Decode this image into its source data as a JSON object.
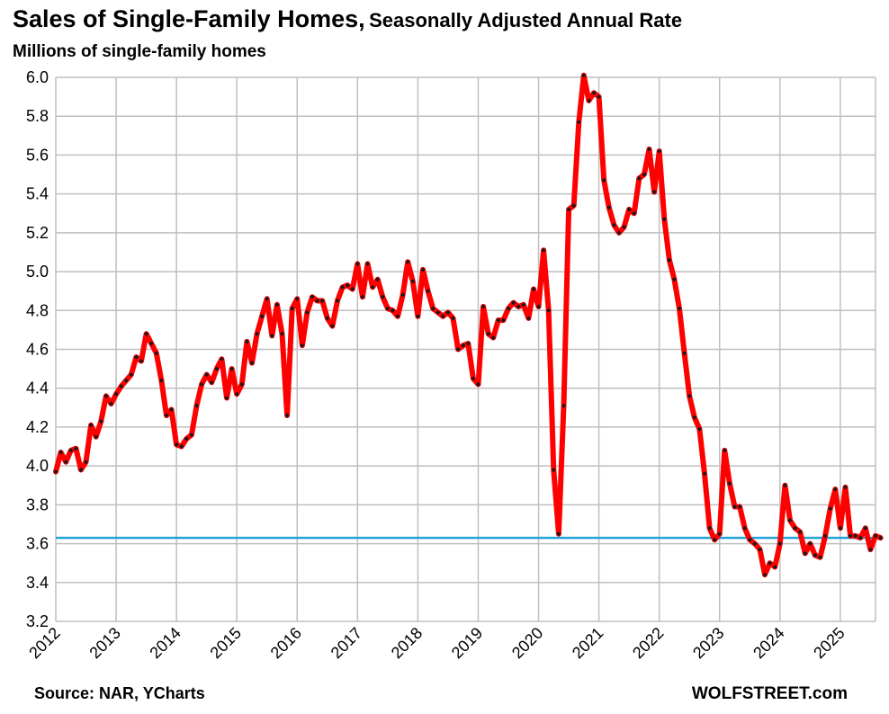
{
  "title": "Sales of Single-Family Homes,",
  "subtitle": "Seasonally Adjusted Annual Rate",
  "ylabel": "Millions of single-family homes",
  "source": "Source: NAR, YCharts",
  "brand": "WOLFSTREET.com",
  "colors": {
    "line": "#ff0000",
    "marker": "#1a1a1a",
    "reference": "#1fa3d8",
    "grid": "#bfbfbf"
  },
  "chart_data": {
    "type": "line",
    "xlabel": "",
    "ylabel": "Millions of single-family homes",
    "x_start": "2012-01",
    "frequency": "monthly",
    "xlim": [
      "2012-01",
      "2025-08"
    ],
    "ylim": [
      3.2,
      6.0
    ],
    "yticks": [
      "3.2",
      "3.4",
      "3.6",
      "3.8",
      "4.0",
      "4.2",
      "4.4",
      "4.6",
      "4.8",
      "5.0",
      "5.2",
      "5.4",
      "5.6",
      "5.8",
      "6.0"
    ],
    "xticks": [
      "2012",
      "2013",
      "2014",
      "2015",
      "2016",
      "2017",
      "2018",
      "2019",
      "2020",
      "2021",
      "2022",
      "2023",
      "2024",
      "2025"
    ],
    "grid": true,
    "reference_line": {
      "y": 3.63
    },
    "series": [
      {
        "values": [
          3.97,
          4.07,
          4.02,
          4.08,
          4.09,
          3.98,
          4.02,
          4.21,
          4.15,
          4.23,
          4.36,
          4.32,
          4.37,
          4.41,
          4.44,
          4.47,
          4.56,
          4.54,
          4.68,
          4.63,
          4.58,
          4.44,
          4.26,
          4.29,
          4.11,
          4.1,
          4.14,
          4.16,
          4.31,
          4.42,
          4.47,
          4.43,
          4.5,
          4.55,
          4.35,
          4.5,
          4.37,
          4.42,
          4.64,
          4.53,
          4.68,
          4.77,
          4.86,
          4.67,
          4.83,
          4.68,
          4.26,
          4.81,
          4.86,
          4.62,
          4.79,
          4.87,
          4.85,
          4.85,
          4.76,
          4.72,
          4.85,
          4.92,
          4.93,
          4.91,
          5.04,
          4.87,
          5.04,
          4.92,
          4.96,
          4.87,
          4.81,
          4.8,
          4.77,
          4.88,
          5.05,
          4.95,
          4.77,
          5.01,
          4.9,
          4.81,
          4.79,
          4.77,
          4.79,
          4.76,
          4.6,
          4.62,
          4.63,
          4.45,
          4.42,
          4.82,
          4.68,
          4.66,
          4.75,
          4.75,
          4.81,
          4.84,
          4.82,
          4.83,
          4.76,
          4.91,
          4.82,
          5.11,
          4.8,
          3.98,
          3.65,
          4.31,
          5.32,
          5.34,
          5.77,
          6.01,
          5.88,
          5.92,
          5.9,
          5.47,
          5.33,
          5.24,
          5.2,
          5.23,
          5.32,
          5.3,
          5.48,
          5.5,
          5.63,
          5.41,
          5.62,
          5.27,
          5.06,
          4.96,
          4.81,
          4.58,
          4.36,
          4.25,
          4.19,
          3.96,
          3.68,
          3.62,
          3.65,
          4.08,
          3.91,
          3.79,
          3.79,
          3.68,
          3.62,
          3.6,
          3.57,
          3.44,
          3.5,
          3.48,
          3.6,
          3.9,
          3.72,
          3.68,
          3.66,
          3.55,
          3.6,
          3.54,
          3.53,
          3.64,
          3.78,
          3.88,
          3.68,
          3.89,
          3.64,
          3.64,
          3.63,
          3.68,
          3.57,
          3.64,
          3.63
        ]
      }
    ]
  }
}
